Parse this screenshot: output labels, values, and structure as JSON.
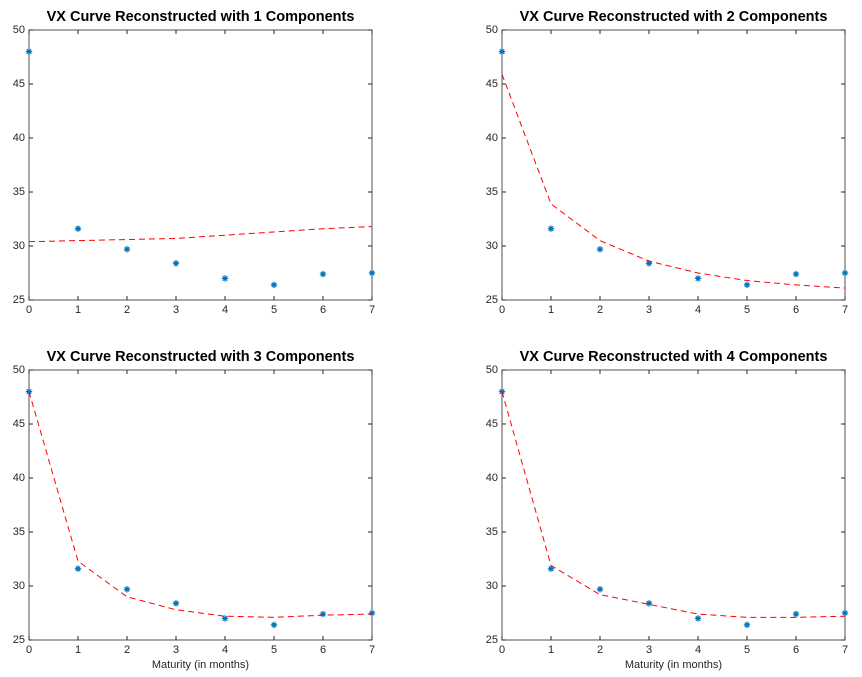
{
  "chart_data": [
    {
      "type": "line",
      "title": "VX Curve Reconstructed with 1 Components",
      "x": [
        0,
        1,
        2,
        3,
        4,
        5,
        6,
        7
      ],
      "xlim": [
        0,
        7
      ],
      "xticks": [
        0,
        1,
        2,
        3,
        4,
        5,
        6,
        7
      ],
      "ylim": [
        25,
        50
      ],
      "yticks": [
        25,
        30,
        35,
        40,
        45,
        50
      ],
      "series": [
        {
          "color": "#0072bd",
          "mode": "markers",
          "values": [
            48,
            31.6,
            29.7,
            28.4,
            27.0,
            26.4,
            27.4,
            27.5
          ]
        },
        {
          "color": "#ff0000",
          "mode": "dashed",
          "values": [
            30.4,
            30.5,
            30.6,
            30.7,
            31.0,
            31.3,
            31.6,
            31.8
          ]
        }
      ]
    },
    {
      "type": "line",
      "title": "VX Curve Reconstructed with 2 Components",
      "x": [
        0,
        1,
        2,
        3,
        4,
        5,
        6,
        7
      ],
      "xlim": [
        0,
        7
      ],
      "xticks": [
        0,
        1,
        2,
        3,
        4,
        5,
        6,
        7
      ],
      "ylim": [
        25,
        50
      ],
      "yticks": [
        25,
        30,
        35,
        40,
        45,
        50
      ],
      "series": [
        {
          "color": "#0072bd",
          "mode": "markers",
          "values": [
            48,
            31.6,
            29.7,
            28.4,
            27.0,
            26.4,
            27.4,
            27.5
          ]
        },
        {
          "color": "#ff0000",
          "mode": "dashed",
          "values": [
            45.9,
            33.9,
            30.5,
            28.6,
            27.5,
            26.8,
            26.4,
            26.1
          ]
        }
      ]
    },
    {
      "type": "line",
      "title": "VX Curve Reconstructed with 3 Components",
      "x_label": "Maturity (in months)",
      "x": [
        0,
        1,
        2,
        3,
        4,
        5,
        6,
        7
      ],
      "xlim": [
        0,
        7
      ],
      "xticks": [
        0,
        1,
        2,
        3,
        4,
        5,
        6,
        7
      ],
      "ylim": [
        25,
        50
      ],
      "yticks": [
        25,
        30,
        35,
        40,
        45,
        50
      ],
      "series": [
        {
          "color": "#0072bd",
          "mode": "markers",
          "values": [
            48,
            31.6,
            29.7,
            28.4,
            27.0,
            26.4,
            27.4,
            27.5
          ]
        },
        {
          "color": "#ff0000",
          "mode": "dashed",
          "values": [
            48.0,
            32.3,
            29.0,
            27.8,
            27.2,
            27.1,
            27.3,
            27.4
          ]
        }
      ]
    },
    {
      "type": "line",
      "title": "VX Curve Reconstructed with 4 Components",
      "x_label": "Maturity (in months)",
      "x": [
        0,
        1,
        2,
        3,
        4,
        5,
        6,
        7
      ],
      "xlim": [
        0,
        7
      ],
      "xticks": [
        0,
        1,
        2,
        3,
        4,
        5,
        6,
        7
      ],
      "ylim": [
        25,
        50
      ],
      "yticks": [
        25,
        30,
        35,
        40,
        45,
        50
      ],
      "series": [
        {
          "color": "#0072bd",
          "mode": "markers",
          "values": [
            48,
            31.6,
            29.7,
            28.4,
            27.0,
            26.4,
            27.4,
            27.5
          ]
        },
        {
          "color": "#ff0000",
          "mode": "dashed",
          "values": [
            48.0,
            31.9,
            29.2,
            28.3,
            27.4,
            27.1,
            27.1,
            27.2
          ]
        }
      ]
    }
  ]
}
